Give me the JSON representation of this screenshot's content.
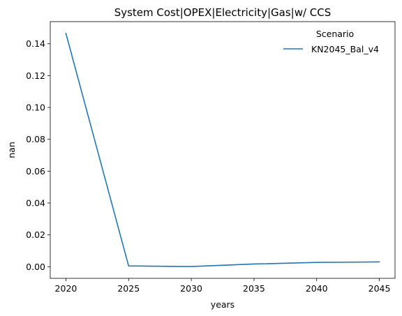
{
  "chart_data": {
    "type": "line",
    "title": "System Cost|OPEX|Electricity|Gas|w/ CCS",
    "xlabel": "years",
    "ylabel": "nan",
    "x": [
      2020,
      2025,
      2030,
      2035,
      2040,
      2045
    ],
    "xticks": [
      "2020",
      "2025",
      "2030",
      "2035",
      "2040",
      "2045"
    ],
    "yticks": [
      "0.00",
      "0.02",
      "0.04",
      "0.06",
      "0.08",
      "0.10",
      "0.12",
      "0.14"
    ],
    "xlim": [
      2018.75,
      2046.25
    ],
    "ylim": [
      -0.0073,
      0.1539
    ],
    "grid": false,
    "legend": {
      "title": "Scenario",
      "placement": "top-right"
    },
    "series": [
      {
        "name": "KN2045_Bal_v4",
        "color": "#1f77b4",
        "values": [
          0.1465,
          0.0005,
          0.0001,
          0.0017,
          0.0027,
          0.003
        ]
      }
    ]
  }
}
